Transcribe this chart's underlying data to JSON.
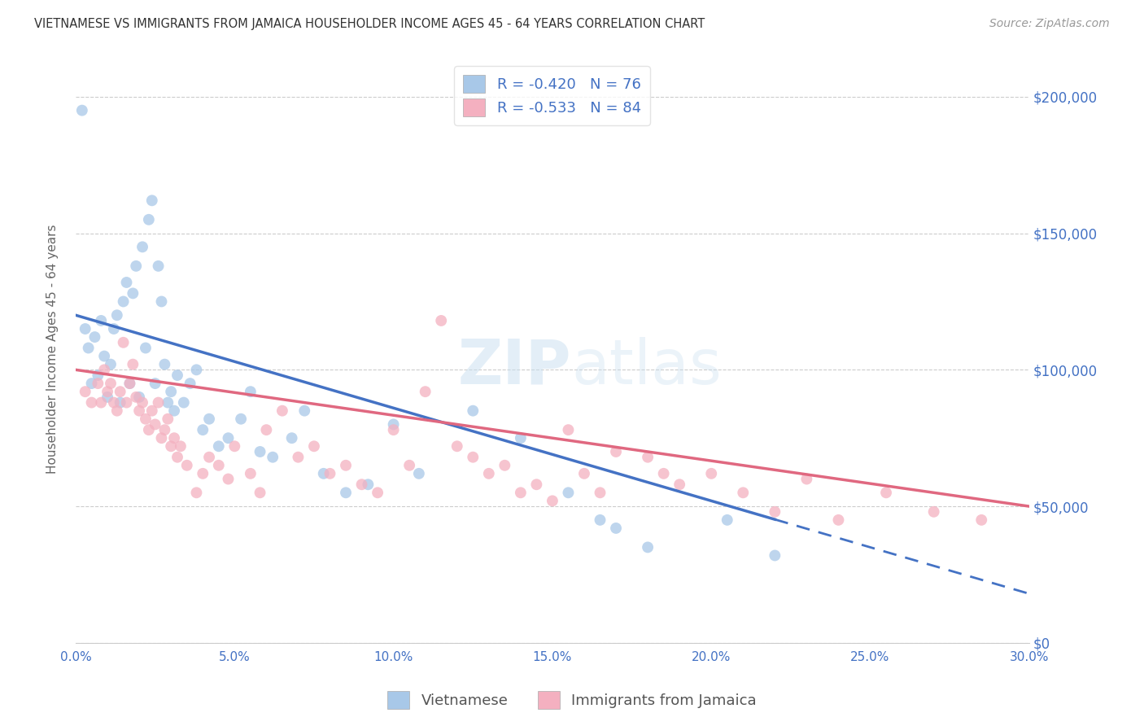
{
  "title": "VIETNAMESE VS IMMIGRANTS FROM JAMAICA HOUSEHOLDER INCOME AGES 45 - 64 YEARS CORRELATION CHART",
  "source": "Source: ZipAtlas.com",
  "ylabel": "Householder Income Ages 45 - 64 years",
  "xlabel_ticks": [
    "0.0%",
    "5.0%",
    "10.0%",
    "15.0%",
    "20.0%",
    "25.0%",
    "30.0%"
  ],
  "xlabel_vals": [
    0.0,
    5.0,
    10.0,
    15.0,
    20.0,
    25.0,
    30.0
  ],
  "ylabel_ticks": [
    0,
    50000,
    100000,
    150000,
    200000
  ],
  "ylabel_labels": [
    "$0",
    "$50,000",
    "$100,000",
    "$150,000",
    "$200,000"
  ],
  "ylim": [
    0,
    215000
  ],
  "xlim": [
    0,
    30
  ],
  "r_vietnamese": -0.42,
  "n_vietnamese": 76,
  "r_jamaica": -0.533,
  "n_jamaica": 84,
  "color_vietnamese": "#a8c8e8",
  "color_jamaica": "#f4b0c0",
  "color_line_vietnamese": "#4472c4",
  "color_line_jamaica": "#e06880",
  "color_axes_labels": "#4472c4",
  "legend_label_vietnamese": "Vietnamese",
  "legend_label_jamaica": "Immigrants from Jamaica",
  "viet_line_x0": 0,
  "viet_line_y0": 120000,
  "viet_line_x1": 30,
  "viet_line_y1": 18000,
  "jam_line_x0": 0,
  "jam_line_y0": 100000,
  "jam_line_x1": 30,
  "jam_line_y1": 50000,
  "viet_data_max_x": 22,
  "vietnamese_x": [
    0.2,
    0.3,
    0.4,
    0.5,
    0.6,
    0.7,
    0.8,
    0.9,
    1.0,
    1.1,
    1.2,
    1.3,
    1.4,
    1.5,
    1.6,
    1.7,
    1.8,
    1.9,
    2.0,
    2.1,
    2.2,
    2.3,
    2.4,
    2.5,
    2.6,
    2.7,
    2.8,
    2.9,
    3.0,
    3.1,
    3.2,
    3.4,
    3.6,
    3.8,
    4.0,
    4.2,
    4.5,
    4.8,
    5.2,
    5.5,
    5.8,
    6.2,
    6.8,
    7.2,
    7.8,
    8.5,
    9.2,
    10.0,
    10.8,
    12.5,
    14.0,
    15.5,
    16.5,
    17.0,
    18.0,
    20.5,
    22.0
  ],
  "vietnamese_y": [
    195000,
    115000,
    108000,
    95000,
    112000,
    98000,
    118000,
    105000,
    90000,
    102000,
    115000,
    120000,
    88000,
    125000,
    132000,
    95000,
    128000,
    138000,
    90000,
    145000,
    108000,
    155000,
    162000,
    95000,
    138000,
    125000,
    102000,
    88000,
    92000,
    85000,
    98000,
    88000,
    95000,
    100000,
    78000,
    82000,
    72000,
    75000,
    82000,
    92000,
    70000,
    68000,
    75000,
    85000,
    62000,
    55000,
    58000,
    80000,
    62000,
    85000,
    75000,
    55000,
    45000,
    42000,
    35000,
    45000,
    32000
  ],
  "jamaica_x": [
    0.3,
    0.5,
    0.7,
    0.8,
    0.9,
    1.0,
    1.1,
    1.2,
    1.3,
    1.4,
    1.5,
    1.6,
    1.7,
    1.8,
    1.9,
    2.0,
    2.1,
    2.2,
    2.3,
    2.4,
    2.5,
    2.6,
    2.7,
    2.8,
    2.9,
    3.0,
    3.1,
    3.2,
    3.3,
    3.5,
    3.8,
    4.0,
    4.2,
    4.5,
    4.8,
    5.0,
    5.5,
    5.8,
    6.0,
    6.5,
    7.0,
    7.5,
    8.0,
    8.5,
    9.0,
    9.5,
    10.0,
    10.5,
    11.0,
    11.5,
    12.0,
    12.5,
    13.0,
    13.5,
    14.0,
    14.5,
    15.0,
    15.5,
    16.0,
    16.5,
    17.0,
    18.0,
    18.5,
    19.0,
    20.0,
    21.0,
    22.0,
    23.0,
    24.0,
    25.5,
    27.0,
    28.5
  ],
  "jamaica_y": [
    92000,
    88000,
    95000,
    88000,
    100000,
    92000,
    95000,
    88000,
    85000,
    92000,
    110000,
    88000,
    95000,
    102000,
    90000,
    85000,
    88000,
    82000,
    78000,
    85000,
    80000,
    88000,
    75000,
    78000,
    82000,
    72000,
    75000,
    68000,
    72000,
    65000,
    55000,
    62000,
    68000,
    65000,
    60000,
    72000,
    62000,
    55000,
    78000,
    85000,
    68000,
    72000,
    62000,
    65000,
    58000,
    55000,
    78000,
    65000,
    92000,
    118000,
    72000,
    68000,
    62000,
    65000,
    55000,
    58000,
    52000,
    78000,
    62000,
    55000,
    70000,
    68000,
    62000,
    58000,
    62000,
    55000,
    48000,
    60000,
    45000,
    55000,
    48000,
    45000
  ]
}
